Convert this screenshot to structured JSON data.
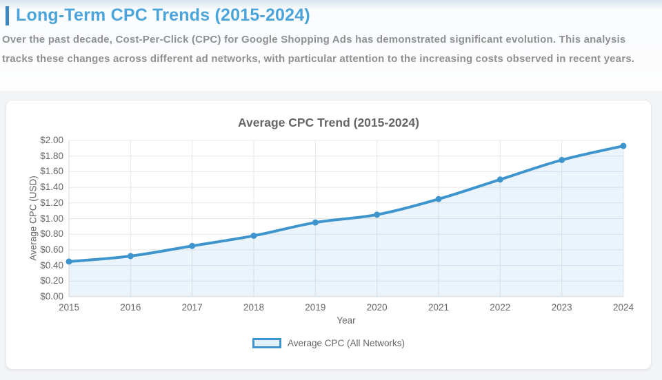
{
  "page": {
    "title": "Long-Term CPC Trends (2015-2024)",
    "intro": "Over the past decade, Cost-Per-Click (CPC) for Google Shopping Ads has demonstrated significant evolution. This analysis tracks these changes across different ad networks, with particular attention to the increasing costs observed in recent years."
  },
  "colors": {
    "heading_text": "#4ba4da",
    "heading_bar": "#3d87c2",
    "intro_text": "#8f9091",
    "chart_text": "#666666",
    "line": "#3e95cd",
    "area_fill": "rgba(62,149,205,0.10)",
    "grid": "#e7e7e7",
    "axis_border": "#d9d9d9"
  },
  "chart_data": {
    "type": "line",
    "title": "Average CPC Trend (2015-2024)",
    "xlabel": "Year",
    "ylabel": "Average CPC (USD)",
    "categories": [
      "2015",
      "2016",
      "2017",
      "2018",
      "2019",
      "2020",
      "2021",
      "2022",
      "2023",
      "2024"
    ],
    "series": [
      {
        "name": "Average CPC (All Networks)",
        "values": [
          0.45,
          0.52,
          0.65,
          0.78,
          0.95,
          1.05,
          1.25,
          1.5,
          1.75,
          1.93
        ]
      }
    ],
    "ylim": [
      0,
      2
    ],
    "ytick_step": 0.2,
    "ytick_labels": [
      "$2.00",
      "$1.80",
      "$1.60",
      "$1.40",
      "$1.20",
      "$1.00",
      "$0.80",
      "$0.60",
      "$0.40",
      "$0.20",
      "$0.00"
    ],
    "grid": true,
    "legend_position": "bottom",
    "area_filled": true,
    "point_markers": true
  }
}
